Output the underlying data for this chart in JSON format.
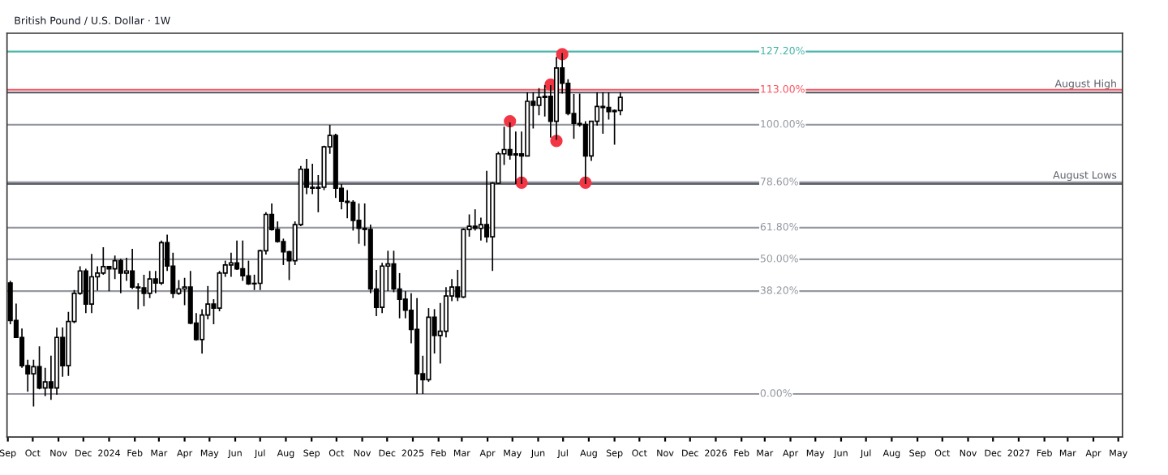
{
  "chart_data": {
    "type": "candlestick",
    "title": "British Pound / U.S. Dollar · 1W",
    "tick_labels": "x",
    "grid": false,
    "legend": false,
    "x": [
      "2023-09-04",
      "2023-09-11",
      "2023-09-18",
      "2023-09-25",
      "2023-10-02",
      "2023-10-09",
      "2023-10-16",
      "2023-10-23",
      "2023-10-30",
      "2023-11-06",
      "2023-11-13",
      "2023-11-20",
      "2023-11-27",
      "2023-12-04",
      "2023-12-11",
      "2023-12-18",
      "2023-12-25",
      "2024-01-01",
      "2024-01-08",
      "2024-01-15",
      "2024-01-22",
      "2024-01-29",
      "2024-02-05",
      "2024-02-12",
      "2024-02-19",
      "2024-02-26",
      "2024-03-04",
      "2024-03-11",
      "2024-03-18",
      "2024-03-25",
      "2024-04-01",
      "2024-04-08",
      "2024-04-15",
      "2024-04-22",
      "2024-04-29",
      "2024-05-06",
      "2024-05-13",
      "2024-05-20",
      "2024-05-27",
      "2024-06-03",
      "2024-06-10",
      "2024-06-17",
      "2024-06-24",
      "2024-07-01",
      "2024-07-08",
      "2024-07-15",
      "2024-07-22",
      "2024-07-29",
      "2024-08-05",
      "2024-08-12",
      "2024-08-19",
      "2024-08-26",
      "2024-09-02",
      "2024-09-09",
      "2024-09-16",
      "2024-09-23",
      "2024-09-30",
      "2024-10-07",
      "2024-10-14",
      "2024-10-21",
      "2024-10-28",
      "2024-11-04",
      "2024-11-11",
      "2024-11-18",
      "2024-11-25",
      "2024-12-02",
      "2024-12-09",
      "2024-12-16",
      "2024-12-23",
      "2024-12-30",
      "2025-01-06",
      "2025-01-13",
      "2025-01-20",
      "2025-01-27",
      "2025-02-03",
      "2025-02-10",
      "2025-02-17",
      "2025-02-24",
      "2025-03-03",
      "2025-03-10",
      "2025-03-17",
      "2025-03-24",
      "2025-03-31",
      "2025-04-07",
      "2025-04-14",
      "2025-04-21",
      "2025-04-28",
      "2025-05-05",
      "2025-05-12",
      "2025-05-19",
      "2025-05-26",
      "2025-06-02",
      "2025-06-09",
      "2025-06-16",
      "2025-06-23",
      "2025-06-30",
      "2025-07-07",
      "2025-07-14",
      "2025-07-21",
      "2025-07-28",
      "2025-08-04",
      "2025-08-11",
      "2025-08-18",
      "2025-08-25",
      "2025-09-01",
      "2025-09-08"
    ],
    "ohlc": [
      [
        41.2,
        42.0,
        25.9,
        27.3
      ],
      [
        27.3,
        33.6,
        21.0,
        21.0
      ],
      [
        21.0,
        24.3,
        9.7,
        10.5
      ],
      [
        10.5,
        12.7,
        0.8,
        7.5
      ],
      [
        7.5,
        12.7,
        -4.7,
        10.1
      ],
      [
        10.1,
        17.7,
        1.7,
        2.2
      ],
      [
        2.2,
        9.7,
        -0.8,
        4.5
      ],
      [
        4.5,
        14.2,
        -2.2,
        2.2
      ],
      [
        2.2,
        24.6,
        -0.3,
        21.0
      ],
      [
        21.0,
        24.7,
        6.4,
        10.5
      ],
      [
        10.5,
        30.5,
        6.7,
        26.9
      ],
      [
        26.9,
        38.6,
        26.3,
        37.4
      ],
      [
        37.4,
        47.4,
        36.8,
        45.7
      ],
      [
        45.7,
        46.5,
        30.0,
        33.4
      ],
      [
        33.4,
        52.0,
        30.0,
        43.5
      ],
      [
        43.5,
        47.4,
        38.4,
        44.9
      ],
      [
        44.9,
        54.5,
        44.3,
        47.3
      ],
      [
        47.3,
        47.5,
        38.2,
        46.5
      ],
      [
        46.5,
        51.4,
        42.7,
        49.5
      ],
      [
        49.5,
        50.2,
        37.4,
        44.9
      ],
      [
        44.9,
        50.6,
        42.0,
        45.7
      ],
      [
        45.7,
        53.9,
        39.0,
        39.7
      ],
      [
        39.7,
        41.2,
        31.5,
        39.4
      ],
      [
        39.4,
        44.3,
        32.6,
        37.4
      ],
      [
        37.4,
        45.7,
        35.6,
        42.7
      ],
      [
        42.7,
        45.7,
        37.4,
        41.2
      ],
      [
        41.2,
        57.0,
        40.5,
        56.2
      ],
      [
        56.2,
        59.2,
        45.7,
        47.5
      ],
      [
        47.5,
        52.5,
        35.6,
        37.4
      ],
      [
        37.4,
        42.3,
        36.8,
        39.0
      ],
      [
        39.0,
        43.1,
        33.0,
        39.7
      ],
      [
        39.7,
        45.7,
        25.9,
        26.3
      ],
      [
        26.3,
        30.0,
        19.8,
        20.2
      ],
      [
        20.2,
        31.5,
        15.0,
        29.3
      ],
      [
        29.3,
        40.1,
        27.7,
        33.4
      ],
      [
        33.4,
        35.2,
        25.9,
        31.9
      ],
      [
        31.9,
        45.7,
        30.7,
        44.9
      ],
      [
        44.9,
        49.5,
        43.5,
        47.9
      ],
      [
        47.9,
        52.5,
        43.5,
        48.7
      ],
      [
        48.7,
        57.0,
        46.1,
        46.5
      ],
      [
        46.5,
        57.0,
        42.0,
        43.9
      ],
      [
        43.9,
        49.5,
        40.5,
        40.9
      ],
      [
        40.9,
        44.3,
        38.6,
        41.1
      ],
      [
        41.1,
        53.6,
        38.6,
        53.2
      ],
      [
        53.2,
        67.5,
        51.8,
        66.7
      ],
      [
        66.7,
        70.8,
        60.7,
        61.1
      ],
      [
        61.1,
        64.1,
        56.2,
        56.6
      ],
      [
        56.6,
        57.7,
        47.9,
        52.8
      ],
      [
        52.8,
        53.2,
        42.3,
        49.5
      ],
      [
        49.5,
        64.1,
        47.9,
        62.9
      ],
      [
        62.9,
        84.7,
        62.3,
        83.5
      ],
      [
        83.5,
        87.3,
        74.2,
        76.8
      ],
      [
        76.8,
        85.5,
        74.2,
        76.4
      ],
      [
        76.4,
        81.3,
        67.5,
        76.8
      ],
      [
        76.8,
        92.2,
        75.7,
        91.8
      ],
      [
        91.8,
        100.0,
        89.2,
        96.0
      ],
      [
        96.0,
        96.7,
        72.8,
        76.4
      ],
      [
        76.4,
        78.0,
        68.6,
        71.6
      ],
      [
        71.6,
        75.7,
        65.3,
        71.2
      ],
      [
        71.2,
        72.0,
        60.7,
        64.5
      ],
      [
        64.5,
        70.8,
        55.8,
        61.5
      ],
      [
        61.5,
        70.8,
        55.0,
        61.1
      ],
      [
        61.1,
        62.9,
        37.4,
        39.0
      ],
      [
        39.0,
        46.1,
        28.9,
        32.2
      ],
      [
        32.2,
        48.7,
        30.0,
        47.5
      ],
      [
        47.5,
        53.2,
        38.2,
        48.3
      ],
      [
        48.3,
        53.2,
        37.8,
        39.0
      ],
      [
        39.0,
        44.9,
        28.1,
        35.2
      ],
      [
        35.2,
        38.2,
        28.1,
        31.1
      ],
      [
        31.1,
        37.4,
        18.8,
        24.0
      ],
      [
        24.0,
        35.6,
        0.0,
        7.5
      ],
      [
        7.5,
        14.2,
        0.0,
        5.3
      ],
      [
        5.3,
        31.9,
        4.5,
        28.5
      ],
      [
        28.5,
        31.5,
        15.0,
        21.7
      ],
      [
        21.7,
        33.8,
        11.3,
        23.3
      ],
      [
        23.3,
        39.7,
        21.0,
        36.4
      ],
      [
        36.4,
        42.7,
        34.5,
        39.7
      ],
      [
        39.7,
        46.1,
        34.5,
        36.0
      ],
      [
        36.0,
        61.5,
        35.6,
        61.1
      ],
      [
        61.1,
        66.7,
        58.4,
        62.3
      ],
      [
        62.3,
        68.6,
        60.7,
        61.5
      ],
      [
        61.5,
        65.5,
        57.0,
        62.9
      ],
      [
        62.9,
        82.9,
        56.2,
        58.4
      ],
      [
        58.4,
        78.7,
        45.7,
        78.3
      ],
      [
        78.3,
        90.0,
        78.0,
        89.2
      ],
      [
        89.2,
        99.3,
        85.1,
        90.8
      ],
      [
        90.8,
        100.9,
        87.0,
        88.8
      ],
      [
        88.8,
        97.5,
        78.0,
        89.2
      ],
      [
        89.2,
        97.5,
        78.0,
        88.4
      ],
      [
        88.4,
        112.0,
        88.4,
        108.7
      ],
      [
        108.7,
        112.0,
        98.6,
        107.2
      ],
      [
        107.2,
        113.6,
        103.5,
        110.2
      ],
      [
        110.2,
        114.7,
        103.1,
        110.6
      ],
      [
        110.6,
        114.7,
        95.2,
        101.3
      ],
      [
        101.3,
        125.2,
        94.4,
        121.1
      ],
      [
        121.1,
        126.6,
        111.6,
        115.4
      ],
      [
        115.4,
        116.9,
        103.5,
        104.2
      ],
      [
        104.2,
        111.4,
        94.8,
        100.5
      ],
      [
        100.5,
        111.6,
        99.3,
        100.1
      ],
      [
        100.1,
        101.3,
        78.0,
        88.4
      ],
      [
        88.4,
        101.5,
        86.6,
        101.3
      ],
      [
        101.3,
        112.0,
        99.7,
        106.8
      ],
      [
        106.8,
        112.0,
        96.7,
        106.4
      ],
      [
        106.4,
        112.0,
        101.9,
        104.9
      ],
      [
        104.9,
        105.7,
        92.6,
        105.3
      ],
      [
        105.3,
        112.0,
        103.5,
        110.2
      ]
    ],
    "color": "#000000",
    "ylim": [
      -16,
      134
    ],
    "series": [
      {
        "type": "scatter",
        "color": "#f23645",
        "marker": "circle",
        "x": [
          "2025-04-28",
          "2025-06-16",
          "2025-06-30",
          "2025-06-23",
          "2025-05-12",
          "2025-07-28"
        ],
        "values": [
          101.3,
          114.9,
          126.2,
          94.0,
          78.5,
          78.5
        ]
      }
    ],
    "ref_lines": [
      {
        "axis": "y",
        "value": 127.2,
        "label": "127.20%",
        "color": "#4db6ac"
      },
      {
        "axis": "y",
        "value": 113,
        "label": "113.00%",
        "color": "#f7525f"
      },
      {
        "axis": "y",
        "value": 100,
        "label": "100.00%",
        "color": "#9598a1"
      },
      {
        "axis": "y",
        "value": 78.6,
        "label": "78.60%",
        "color": "#9598a1"
      },
      {
        "axis": "y",
        "value": 61.8,
        "label": "61.80%",
        "color": "#9598a1"
      },
      {
        "axis": "y",
        "value": 50,
        "label": "50.00%",
        "color": "#9598a1"
      },
      {
        "axis": "y",
        "value": 38.2,
        "label": "38.20%",
        "color": "#9598a1"
      },
      {
        "axis": "y",
        "value": 0,
        "label": "0.00%",
        "color": "#9598a1"
      },
      {
        "axis": "y",
        "value": 112.0,
        "label": "August High",
        "color": "#5d606b"
      },
      {
        "axis": "y",
        "value": 78.0,
        "label": "August Lows",
        "color": "#5d606b"
      }
    ],
    "xlim": [
      "2023-08-31",
      "2027-05-06"
    ],
    "xticks": [
      {
        "value": "2023-09-01",
        "label": "Sep"
      },
      {
        "value": "2023-10-01",
        "label": "Oct"
      },
      {
        "value": "2023-11-01",
        "label": "Nov"
      },
      {
        "value": "2023-12-01",
        "label": "Dec"
      },
      {
        "value": "2024-01-01",
        "label": "2024"
      },
      {
        "value": "2024-02-01",
        "label": "Feb"
      },
      {
        "value": "2024-03-01",
        "label": "Mar"
      },
      {
        "value": "2024-04-01",
        "label": "Apr"
      },
      {
        "value": "2024-05-01",
        "label": "May"
      },
      {
        "value": "2024-06-01",
        "label": "Jun"
      },
      {
        "value": "2024-07-01",
        "label": "Jul"
      },
      {
        "value": "2024-08-01",
        "label": "Aug"
      },
      {
        "value": "2024-09-01",
        "label": "Sep"
      },
      {
        "value": "2024-10-01",
        "label": "Oct"
      },
      {
        "value": "2024-11-01",
        "label": "Nov"
      },
      {
        "value": "2024-12-01",
        "label": "Dec"
      },
      {
        "value": "2025-01-01",
        "label": "2025"
      },
      {
        "value": "2025-02-01",
        "label": "Feb"
      },
      {
        "value": "2025-03-01",
        "label": "Mar"
      },
      {
        "value": "2025-04-01",
        "label": "Apr"
      },
      {
        "value": "2025-05-01",
        "label": "May"
      },
      {
        "value": "2025-06-01",
        "label": "Jun"
      },
      {
        "value": "2025-07-01",
        "label": "Jul"
      },
      {
        "value": "2025-08-01",
        "label": "Aug"
      },
      {
        "value": "2025-09-01",
        "label": "Sep"
      },
      {
        "value": "2025-10-01",
        "label": "Oct"
      },
      {
        "value": "2025-11-01",
        "label": "Nov"
      },
      {
        "value": "2025-12-01",
        "label": "Dec"
      },
      {
        "value": "2026-01-01",
        "label": "2026"
      },
      {
        "value": "2026-02-01",
        "label": "Feb"
      },
      {
        "value": "2026-03-01",
        "label": "Mar"
      },
      {
        "value": "2026-04-01",
        "label": "Apr"
      },
      {
        "value": "2026-05-01",
        "label": "May"
      },
      {
        "value": "2026-06-01",
        "label": "Jun"
      },
      {
        "value": "2026-07-01",
        "label": "Jul"
      },
      {
        "value": "2026-08-01",
        "label": "Aug"
      },
      {
        "value": "2026-09-01",
        "label": "Sep"
      },
      {
        "value": "2026-10-01",
        "label": "Oct"
      },
      {
        "value": "2026-11-01",
        "label": "Nov"
      },
      {
        "value": "2026-12-01",
        "label": "Dec"
      },
      {
        "value": "2027-01-01",
        "label": "2027"
      },
      {
        "value": "2027-02-01",
        "label": "Feb"
      },
      {
        "value": "2027-03-01",
        "label": "Mar"
      },
      {
        "value": "2027-04-01",
        "label": "Apr"
      },
      {
        "value": "2027-05-01",
        "label": "May"
      }
    ]
  }
}
